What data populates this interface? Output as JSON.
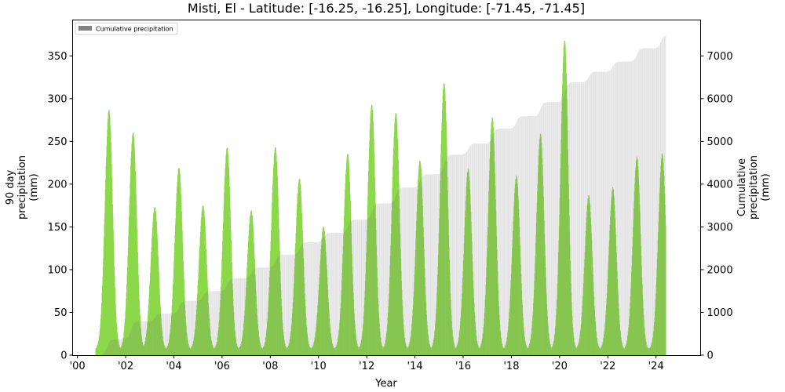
{
  "chart_data": {
    "type": "bar",
    "title": "Misti, El - Latitude: [-16.25, -16.25], Longitude: [-71.45, -71.45]",
    "xlabel": "Year",
    "ylabel": "90 day\nprecipitation\n(mm)",
    "ylabel_right": "Cumulative\nprecipitation\n(mm)",
    "ylim": [
      0,
      392
    ],
    "ylim_right": [
      0,
      7840
    ],
    "xlim": [
      1999.8,
      2025.85
    ],
    "x_ticks": [
      2000,
      2002,
      2004,
      2006,
      2008,
      2010,
      2012,
      2014,
      2016,
      2018,
      2020,
      2022,
      2024
    ],
    "x_tick_labels": [
      "'00",
      "'02",
      "'04",
      "'06",
      "'08",
      "'10",
      "'12",
      "'14",
      "'16",
      "'18",
      "'20",
      "'22",
      "'24"
    ],
    "y_ticks": [
      0,
      50,
      100,
      150,
      200,
      250,
      300,
      350
    ],
    "y_ticks_right": [
      0,
      1000,
      2000,
      3000,
      4000,
      5000,
      6000,
      7000
    ],
    "grid": false,
    "legend": {
      "position": "upper left",
      "entries": [
        "Cumulative precipitation"
      ]
    },
    "data_start": 2000.75,
    "data_end": 2024.4,
    "series": [
      {
        "name": "90 day precipitation",
        "axis": "left",
        "color": "#84c44c",
        "peak_color": "#8cd84a",
        "annual_peaks": [
          {
            "year": 2001.3,
            "value": 281
          },
          {
            "year": 2002.3,
            "value": 254
          },
          {
            "year": 2003.2,
            "value": 167
          },
          {
            "year": 2004.2,
            "value": 213
          },
          {
            "year": 2005.2,
            "value": 169
          },
          {
            "year": 2006.2,
            "value": 237
          },
          {
            "year": 2007.2,
            "value": 163
          },
          {
            "year": 2008.2,
            "value": 237
          },
          {
            "year": 2009.2,
            "value": 200
          },
          {
            "year": 2010.2,
            "value": 144
          },
          {
            "year": 2011.2,
            "value": 229
          },
          {
            "year": 2012.2,
            "value": 287
          },
          {
            "year": 2013.2,
            "value": 277
          },
          {
            "year": 2014.2,
            "value": 221
          },
          {
            "year": 2015.2,
            "value": 312
          },
          {
            "year": 2016.2,
            "value": 212
          },
          {
            "year": 2017.2,
            "value": 272
          },
          {
            "year": 2018.2,
            "value": 204
          },
          {
            "year": 2019.2,
            "value": 253
          },
          {
            "year": 2020.2,
            "value": 362
          },
          {
            "year": 2021.2,
            "value": 181
          },
          {
            "year": 2022.2,
            "value": 190
          },
          {
            "year": 2023.2,
            "value": 226
          },
          {
            "year": 2024.25,
            "value": 230
          }
        ]
      },
      {
        "name": "Cumulative precipitation",
        "axis": "right",
        "color": "#e4e4e4",
        "legend_color": "#808080",
        "year_end_totals": [
          {
            "year": 2001,
            "value": 370
          },
          {
            "year": 2002,
            "value": 790
          },
          {
            "year": 2003,
            "value": 970
          },
          {
            "year": 2004,
            "value": 1270
          },
          {
            "year": 2005,
            "value": 1500
          },
          {
            "year": 2006,
            "value": 1800
          },
          {
            "year": 2007,
            "value": 2050
          },
          {
            "year": 2008,
            "value": 2350
          },
          {
            "year": 2009,
            "value": 2640
          },
          {
            "year": 2010,
            "value": 2860
          },
          {
            "year": 2011,
            "value": 3170
          },
          {
            "year": 2012,
            "value": 3550
          },
          {
            "year": 2013,
            "value": 3920
          },
          {
            "year": 2014,
            "value": 4230
          },
          {
            "year": 2015,
            "value": 4690
          },
          {
            "year": 2016,
            "value": 4950
          },
          {
            "year": 2017,
            "value": 5300
          },
          {
            "year": 2018,
            "value": 5590
          },
          {
            "year": 2019,
            "value": 5920
          },
          {
            "year": 2020,
            "value": 6380
          },
          {
            "year": 2021,
            "value": 6630
          },
          {
            "year": 2022,
            "value": 6870
          },
          {
            "year": 2023,
            "value": 7180
          },
          {
            "year": 2024.4,
            "value": 7490
          }
        ]
      }
    ]
  }
}
